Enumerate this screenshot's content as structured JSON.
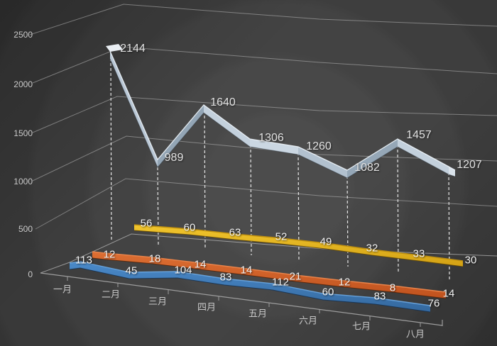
{
  "chart_data": {
    "type": "line",
    "variant": "3d-ribbon-line-chart",
    "title": "",
    "legend": false,
    "grid": true,
    "categories": [
      "一月",
      "二月",
      "三月",
      "四月",
      "五月",
      "六月",
      "七月",
      "八月"
    ],
    "series": [
      {
        "name": "series-white",
        "color": "#c7d4e2",
        "values": [
          2144,
          989,
          1640,
          1306,
          1260,
          1082,
          1457,
          1207
        ]
      },
      {
        "name": "series-yellow",
        "color": "#e9bb20",
        "values": [
          56,
          60,
          63,
          52,
          49,
          32,
          33,
          30
        ]
      },
      {
        "name": "series-orange",
        "color": "#d2622c",
        "values": [
          12,
          18,
          14,
          14,
          21,
          12,
          8,
          14
        ]
      },
      {
        "name": "series-blue",
        "color": "#4080c0",
        "values": [
          113,
          45,
          104,
          83,
          112,
          60,
          83,
          76
        ]
      }
    ],
    "y_axis": {
      "ticks": [
        0,
        500,
        1000,
        1500,
        2000,
        2500
      ],
      "range": [
        0,
        2500
      ]
    },
    "x_axis": {
      "label": "",
      "tick_labels": [
        "一月",
        "二月",
        "三月",
        "四月",
        "五月",
        "六月",
        "七月",
        "八月"
      ]
    }
  },
  "background": {
    "base": "#3f3f3f",
    "ring_center_light": "#4c4c4c",
    "ring_outer_dark": "#2f2f2f"
  },
  "gridline_color": "#c3c3c3",
  "label_color": "#c9c9c9"
}
